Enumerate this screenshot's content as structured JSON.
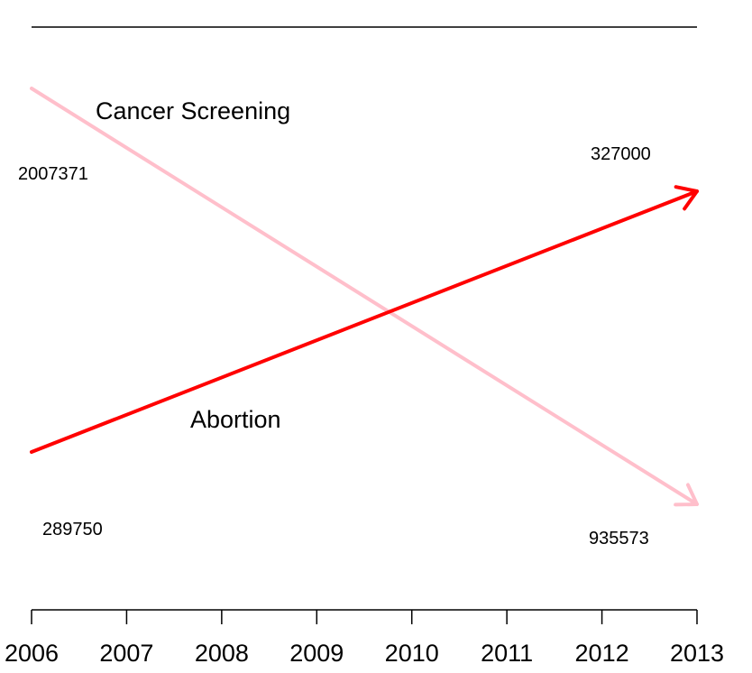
{
  "chart_data": {
    "type": "line",
    "title": "",
    "xlabel": "",
    "ylabel": "",
    "x": [
      2006,
      2013
    ],
    "xlim": [
      2006,
      2013
    ],
    "xticks": [
      "2006",
      "2007",
      "2008",
      "2009",
      "2010",
      "2011",
      "2012",
      "2013"
    ],
    "series": [
      {
        "name": "Cancer Screening",
        "values": [
          2007371,
          935573
        ],
        "start_label": "2007371",
        "end_label": "935573",
        "color": "#ffbfcb"
      },
      {
        "name": "Abortion",
        "values": [
          289750,
          327000
        ],
        "start_label": "289750",
        "end_label": "327000",
        "color": "#ff0000"
      }
    ],
    "grid": false,
    "legend": "none"
  }
}
